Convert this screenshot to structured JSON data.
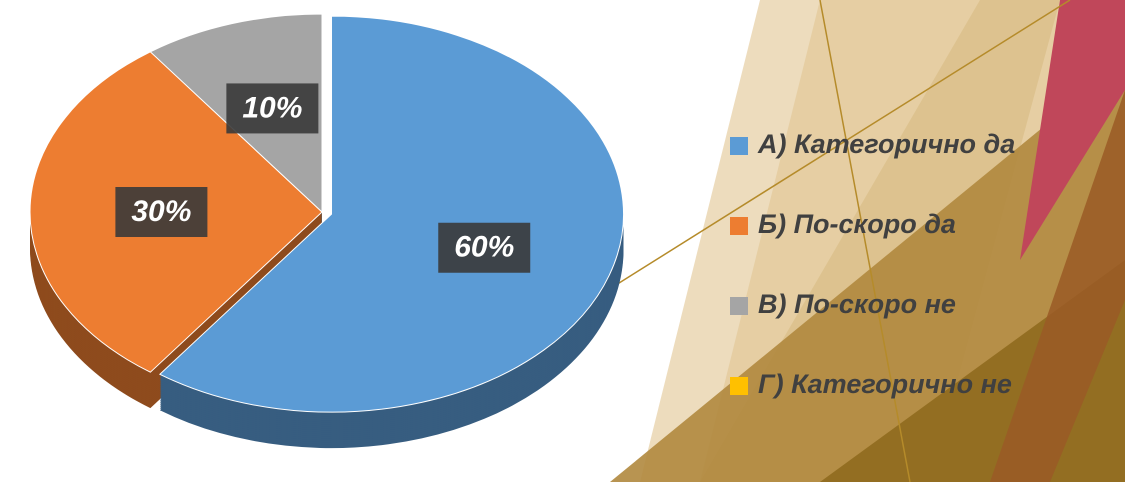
{
  "chart_data": {
    "type": "pie",
    "categories": [
      "А) Категорично да",
      "Б) По-скоро да",
      "В) По-скоро не",
      "Г) Категорично не"
    ],
    "values": [
      60,
      30,
      10,
      0
    ],
    "value_labels": [
      "60%",
      "30%",
      "10%",
      null
    ],
    "colors": [
      "#5b9bd5",
      "#ed7d31",
      "#a5a5a5",
      "#ffc000"
    ],
    "legend": "right"
  }
}
